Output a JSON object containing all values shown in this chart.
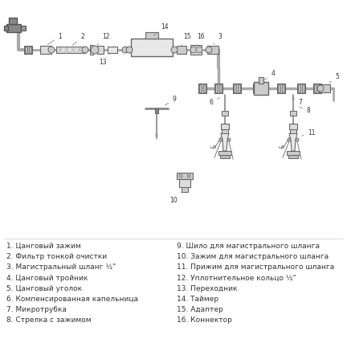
{
  "bg_color": "#ffffff",
  "fg_color": "#555555",
  "text_color": "#333333",
  "light_gray": "#cccccc",
  "mid_gray": "#aaaaaa",
  "dark_gray": "#777777",
  "legend_left": [
    "1. Цанговый зажим",
    "2. Фильтр тонкой очистки",
    "3. Магистральный шланг ½\"",
    "4. Цанговый тройник",
    "5. Цанговый уголок",
    "6. Компенсированная капельница",
    "7. Микротрубка",
    "8. Стрелка с зажимом"
  ],
  "legend_right": [
    "9. Шило для магистрального шланга",
    "10. Зажим для магистрального шланга",
    "11. Прижим для магистрального шланга",
    "12. Уплотнительное кольцо ½\"",
    "13. Переходник",
    "14. Таймер",
    "15. Адаптер",
    "16. Коннектор"
  ],
  "figsize": [
    4.32,
    4.32
  ],
  "dpi": 100
}
